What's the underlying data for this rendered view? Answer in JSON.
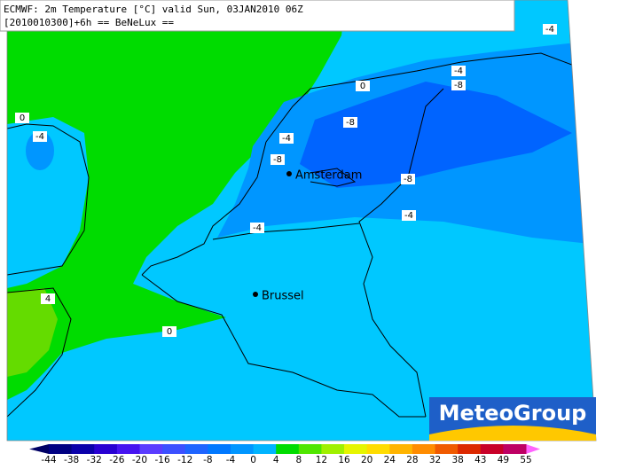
{
  "header": {
    "line1": "ECMWF: 2m Temperature [°C] valid Sun, 03JAN2010 06Z",
    "line2": "[2010010300]+6h  == BeNeLux =="
  },
  "contour_labels": [
    "-4",
    "-4",
    "-8",
    "0",
    "0",
    "-4",
    "-8",
    "-4",
    "-8",
    "-8",
    "-4",
    "-4",
    "4",
    "0"
  ],
  "cities": [
    "Amsterdam",
    "Brussel"
  ],
  "logo": "MeteoGroup",
  "colorbar": {
    "labels": [
      -44,
      -38,
      -32,
      -26,
      -20,
      -16,
      -12,
      -8,
      -4,
      0,
      4,
      8,
      12,
      16,
      20,
      24,
      28,
      32,
      38,
      43,
      49,
      55
    ],
    "colors": [
      "#000082",
      "#0a00aa",
      "#2800d2",
      "#4614f0",
      "#5a3cff",
      "#3c50ff",
      "#1e64ff",
      "#0078ff",
      "#0096ff",
      "#00b4ff",
      "#00dc00",
      "#50e600",
      "#a0f000",
      "#e6f500",
      "#ffdc00",
      "#ffb400",
      "#ff8c00",
      "#f05a00",
      "#dc2800",
      "#c80028",
      "#be0064"
    ],
    "low_color": "#000064",
    "high_color": "#ff64ff"
  }
}
